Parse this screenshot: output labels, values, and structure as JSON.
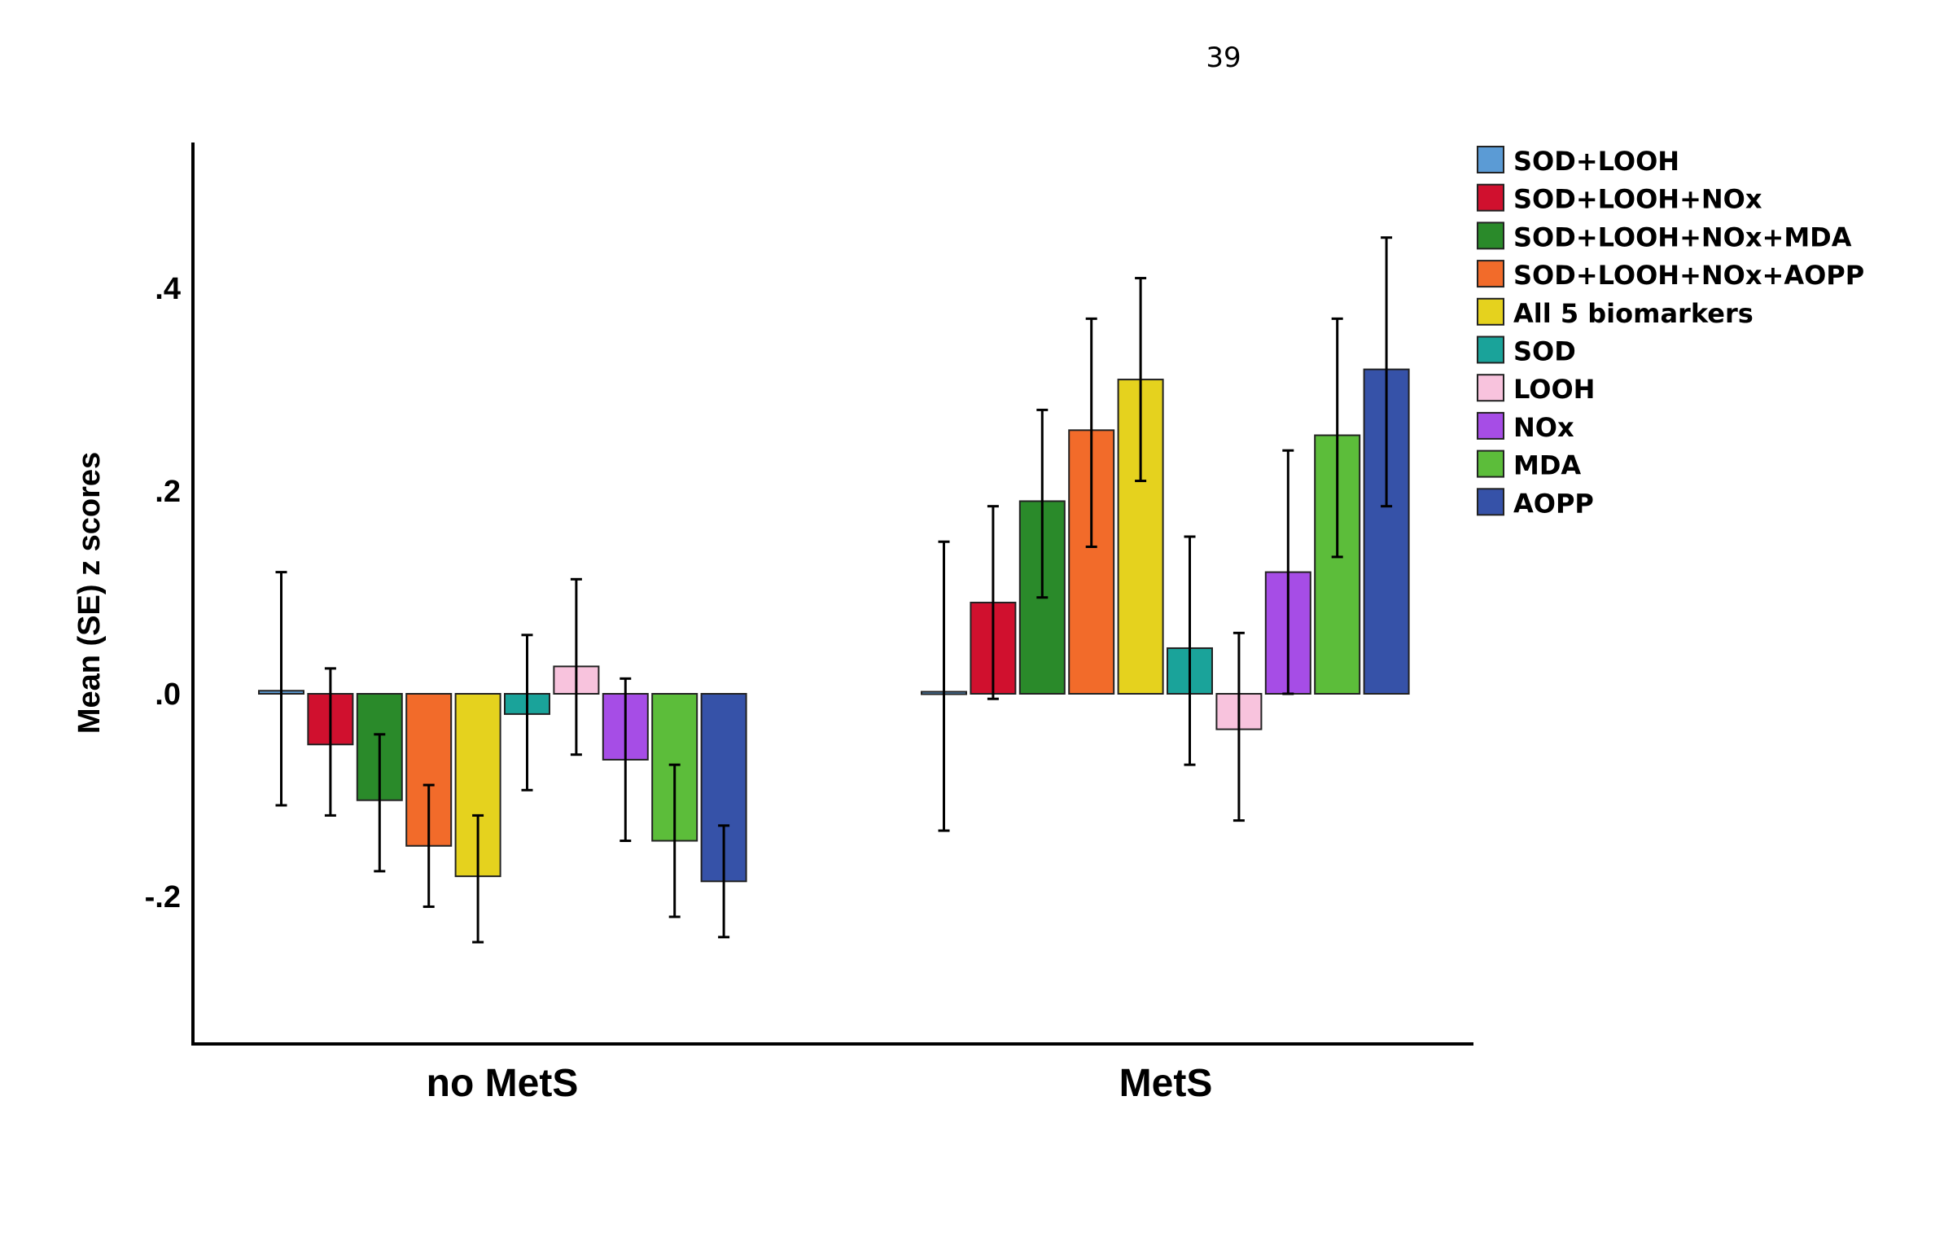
{
  "page_number": "39",
  "chart_data": {
    "type": "bar",
    "title": "",
    "xlabel": "",
    "ylabel": "Mean (SE) z scores",
    "ylim": [
      -0.35,
      0.55
    ],
    "yticks": [
      -0.2,
      0.0,
      0.2,
      0.4
    ],
    "ytick_labels": [
      "-.2",
      ".0",
      ".2",
      ".4"
    ],
    "categories": [
      "no MetS",
      "MetS"
    ],
    "legend_position": "top-right",
    "grid": false,
    "series": [
      {
        "name": "SOD+LOOH",
        "color": "#5b9bd5",
        "values": [
          0.003,
          0.002
        ],
        "err_low": [
          -0.11,
          -0.135
        ],
        "err_high": [
          0.12,
          0.15
        ]
      },
      {
        "name": "SOD+LOOH+NOx",
        "color": "#d0102e",
        "values": [
          -0.05,
          0.09
        ],
        "err_low": [
          -0.12,
          -0.005
        ],
        "err_high": [
          0.025,
          0.185
        ]
      },
      {
        "name": "SOD+LOOH+NOx+MDA",
        "color": "#2a8a2a",
        "values": [
          -0.105,
          0.19
        ],
        "err_low": [
          -0.175,
          0.095
        ],
        "err_high": [
          -0.04,
          0.28
        ]
      },
      {
        "name": "SOD+LOOH+NOx+AOPP",
        "color": "#f26b2a",
        "values": [
          -0.15,
          0.26
        ],
        "err_low": [
          -0.21,
          0.145
        ],
        "err_high": [
          -0.09,
          0.37
        ]
      },
      {
        "name": "All 5 biomarkers",
        "color": "#e5d21e",
        "values": [
          -0.18,
          0.31
        ],
        "err_low": [
          -0.245,
          0.21
        ],
        "err_high": [
          -0.12,
          0.41
        ]
      },
      {
        "name": "SOD",
        "color": "#1aa39a",
        "values": [
          -0.02,
          0.045
        ],
        "err_low": [
          -0.095,
          -0.07
        ],
        "err_high": [
          0.058,
          0.155
        ]
      },
      {
        "name": "LOOH",
        "color": "#f8c3dd",
        "values": [
          0.027,
          -0.035
        ],
        "err_low": [
          -0.06,
          -0.125
        ],
        "err_high": [
          0.113,
          0.06
        ]
      },
      {
        "name": "NOx",
        "color": "#a64de6",
        "values": [
          -0.065,
          0.12
        ],
        "err_low": [
          -0.145,
          0.0
        ],
        "err_high": [
          0.015,
          0.24
        ]
      },
      {
        "name": "MDA",
        "color": "#5cbd3a",
        "values": [
          -0.145,
          0.255
        ],
        "err_low": [
          -0.22,
          0.135
        ],
        "err_high": [
          -0.07,
          0.37
        ]
      },
      {
        "name": "AOPP",
        "color": "#3652a8",
        "values": [
          -0.185,
          0.32
        ],
        "err_low": [
          -0.24,
          0.185
        ],
        "err_high": [
          -0.13,
          0.45
        ]
      }
    ]
  }
}
